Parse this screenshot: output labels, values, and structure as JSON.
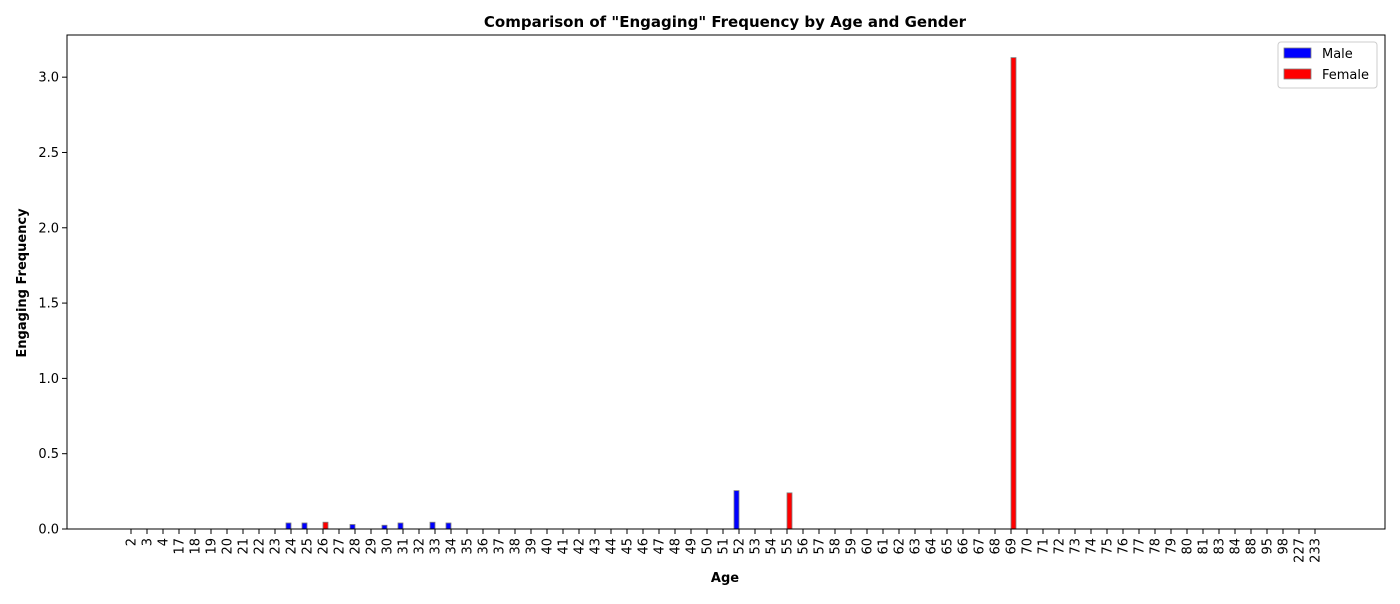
{
  "chart_data": {
    "type": "bar",
    "title": "Comparison of \"Engaging\" Frequency by Age and Gender",
    "xlabel": "Age",
    "ylabel": "Engaging Frequency",
    "categories": [
      "2",
      "3",
      "4",
      "17",
      "18",
      "19",
      "20",
      "21",
      "22",
      "23",
      "24",
      "25",
      "26",
      "27",
      "28",
      "29",
      "30",
      "31",
      "32",
      "33",
      "34",
      "35",
      "36",
      "37",
      "38",
      "39",
      "40",
      "41",
      "42",
      "43",
      "44",
      "45",
      "46",
      "47",
      "48",
      "49",
      "50",
      "51",
      "52",
      "53",
      "54",
      "55",
      "56",
      "57",
      "58",
      "59",
      "60",
      "61",
      "62",
      "63",
      "64",
      "65",
      "66",
      "67",
      "68",
      "69",
      "70",
      "71",
      "72",
      "73",
      "74",
      "75",
      "76",
      "77",
      "78",
      "79",
      "80",
      "81",
      "83",
      "84",
      "88",
      "95",
      "98",
      "227",
      "233"
    ],
    "series": [
      {
        "name": "Male",
        "color": "#0000ff",
        "values": [
          0,
          0,
          0,
          0,
          0,
          0,
          0,
          0,
          0,
          0,
          0.04,
          0.04,
          0,
          0,
          0.03,
          0,
          0.025,
          0.04,
          0,
          0.045,
          0.04,
          0,
          0,
          0,
          0,
          0,
          0,
          0,
          0,
          0,
          0,
          0,
          0,
          0,
          0,
          0,
          0,
          0,
          0.255,
          0,
          0,
          0,
          0,
          0,
          0,
          0,
          0,
          0,
          0,
          0,
          0,
          0,
          0,
          0,
          0,
          0,
          0,
          0,
          0,
          0,
          0,
          0,
          0,
          0,
          0,
          0,
          0,
          0,
          0,
          0,
          0,
          0,
          0,
          0,
          0
        ]
      },
      {
        "name": "Female",
        "color": "#ff0000",
        "values": [
          0,
          0,
          0,
          0,
          0,
          0,
          0,
          0,
          0,
          0,
          0,
          0,
          0.045,
          0,
          0,
          0,
          0,
          0,
          0,
          0,
          0,
          0,
          0,
          0,
          0,
          0,
          0,
          0,
          0,
          0,
          0,
          0,
          0,
          0,
          0,
          0,
          0,
          0,
          0,
          0,
          0,
          0.24,
          0,
          0,
          0,
          0,
          0,
          0,
          0,
          0,
          0,
          0,
          0,
          0,
          0,
          3.13,
          0,
          0,
          0,
          0,
          0,
          0,
          0,
          0,
          0,
          0,
          0,
          0,
          0,
          0,
          0,
          0,
          0,
          0,
          0
        ]
      }
    ],
    "ylim": [
      0,
      3.28
    ],
    "yticks": [
      "0.0",
      "0.5",
      "1.0",
      "1.5",
      "2.0",
      "2.5",
      "3.0"
    ],
    "legend_position": "top-right",
    "grid": false
  }
}
